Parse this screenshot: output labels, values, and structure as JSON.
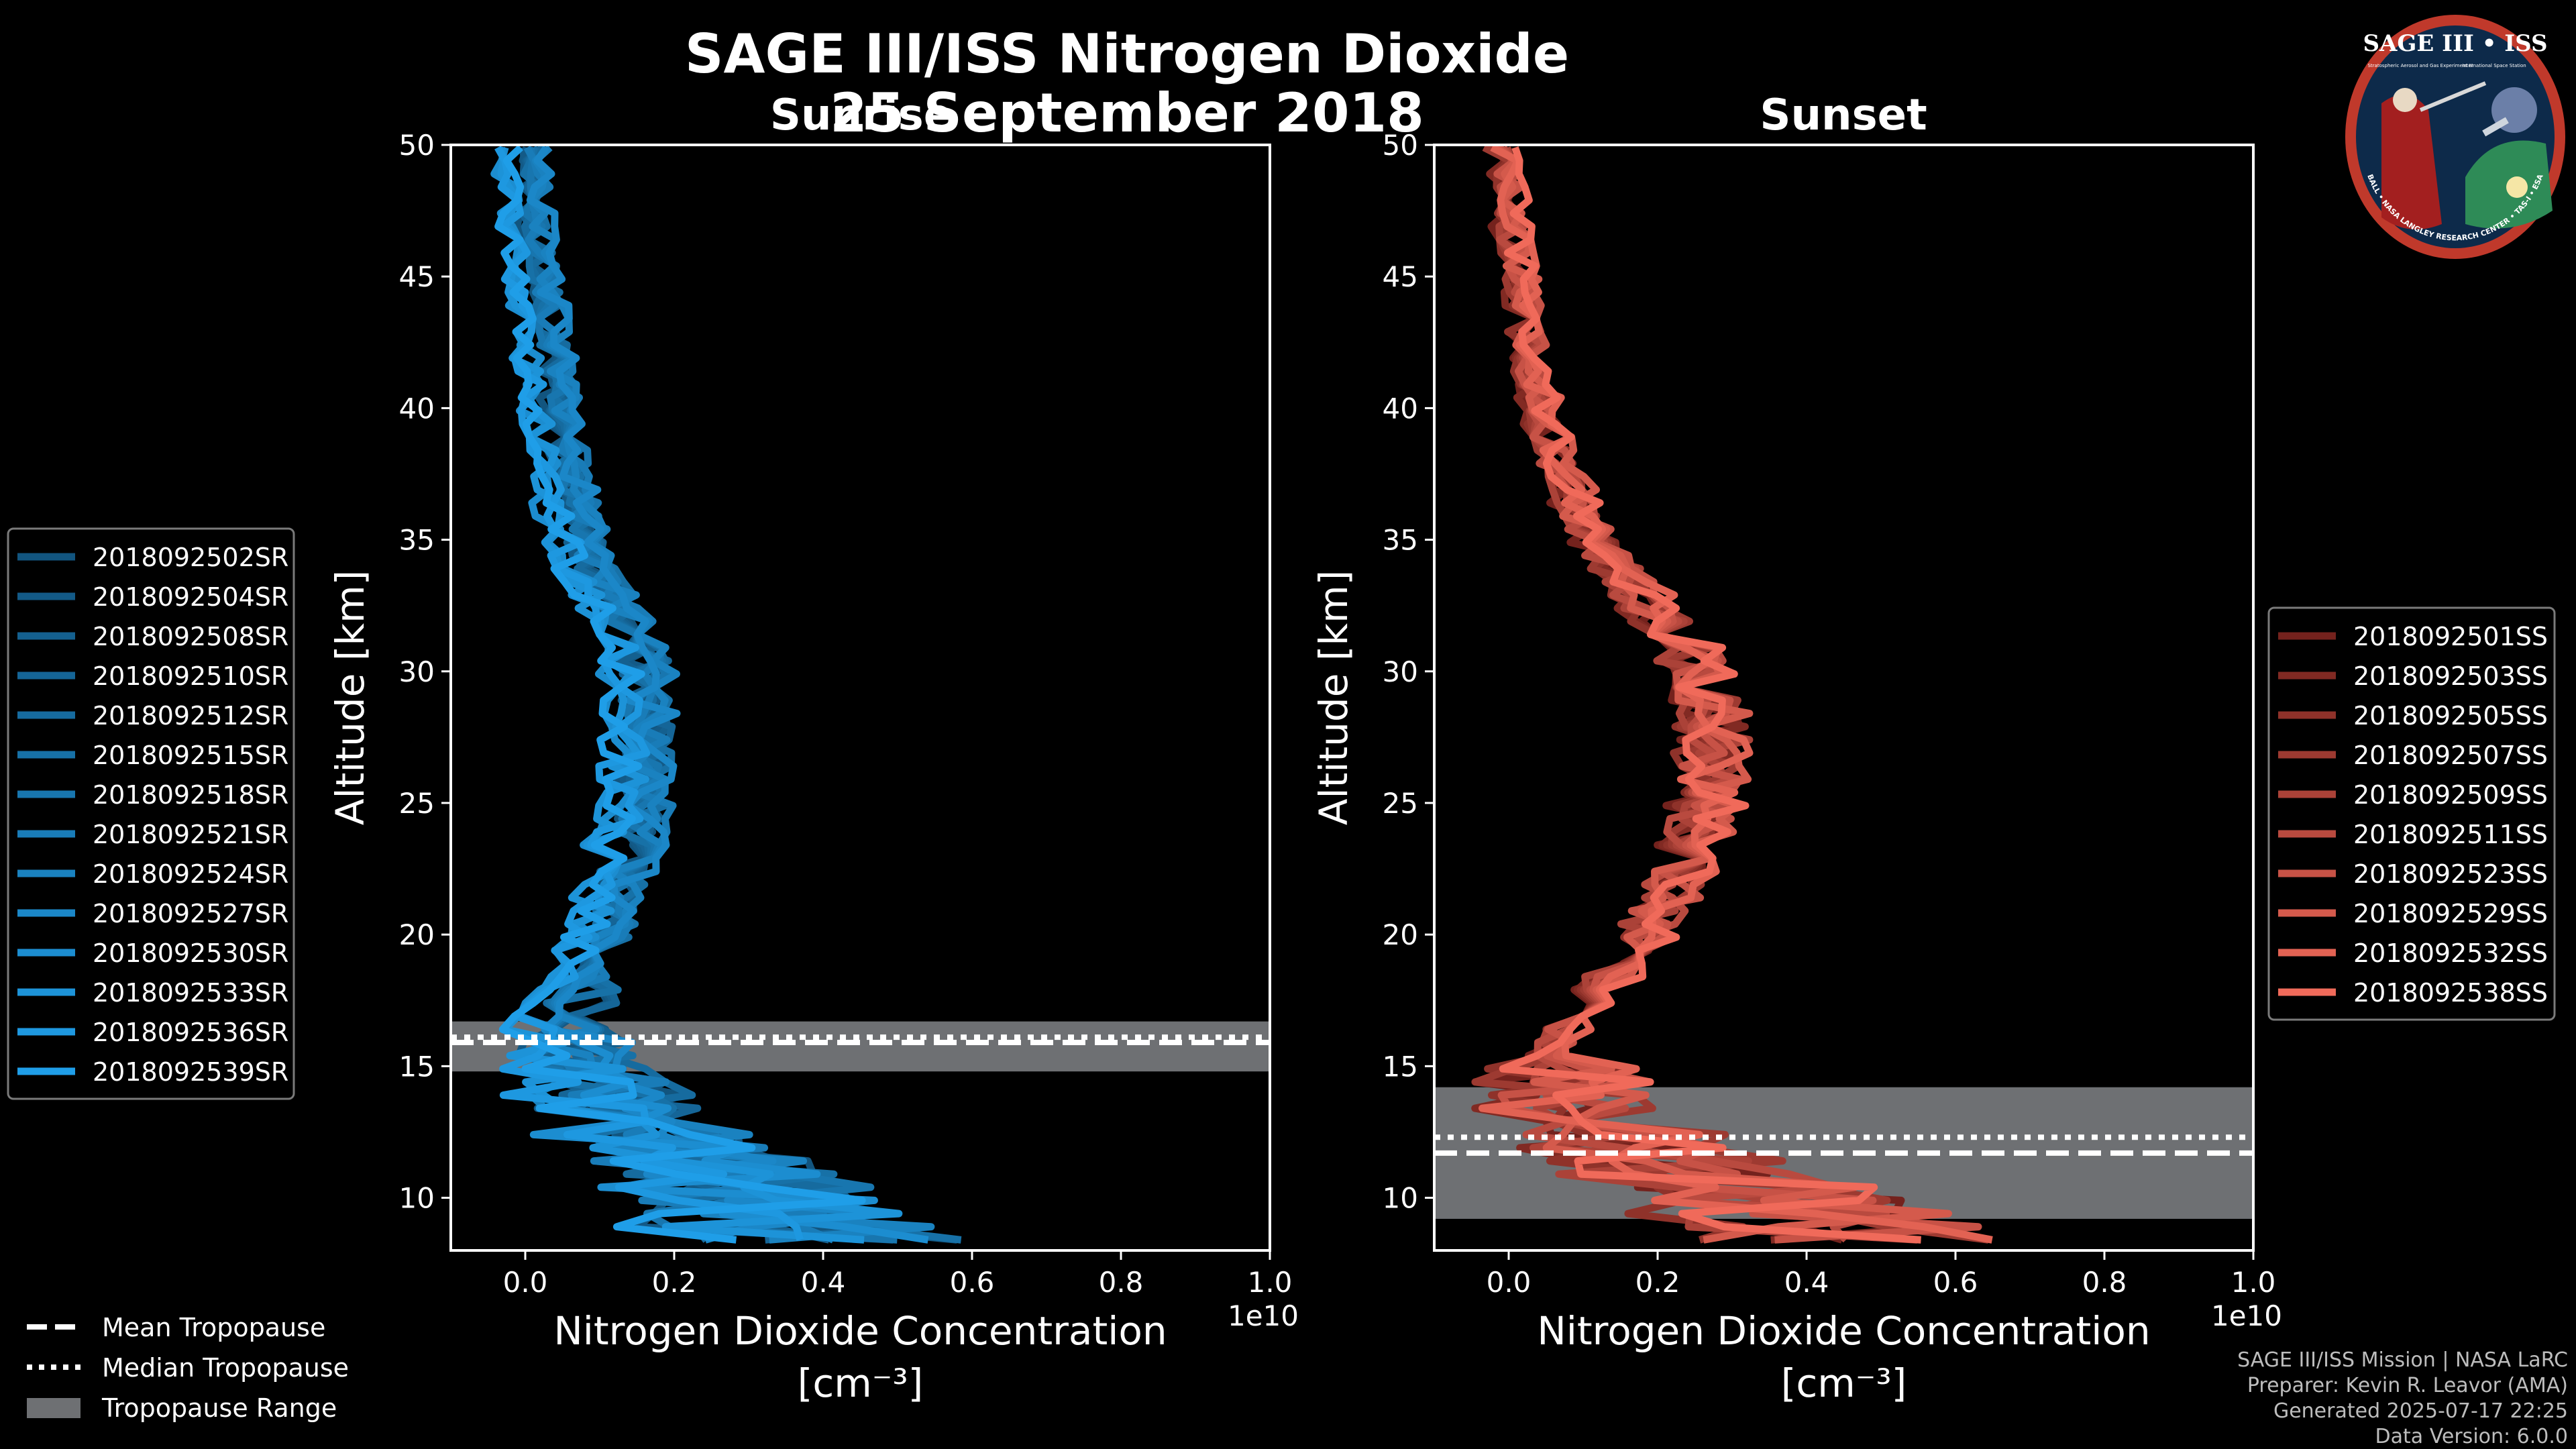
{
  "figure": {
    "title": "SAGE III/ISS Nitrogen Dioxide",
    "date": "25 September 2018",
    "credits": [
      "SAGE III/ISS Mission | NASA LaRC",
      "Preparer: Kevin R. Leavor (AMA)",
      "Generated 2025-07-17 22:25",
      "Data Version: 6.0.0"
    ],
    "logo": {
      "name": "SAGE III • ISS",
      "text_left": "Stratospheric Aerosol and Gas Experiment III",
      "text_right": "International Space Station",
      "ring_text": "BALL • NASA LANGLEY RESEARCH CENTER • TAS-I • ESA"
    },
    "tropopause_legend": [
      {
        "label": "Mean Tropopause",
        "style": "dashed"
      },
      {
        "label": "Median Tropopause",
        "style": "dotted"
      },
      {
        "label": "Tropopause Range",
        "style": "band"
      }
    ]
  },
  "chart_data": [
    {
      "type": "line",
      "title": "Sunrise",
      "xlabel": "Nitrogen Dioxide Concentration",
      "xunit": "[cm⁻³]",
      "ylabel": "Altitude [km]",
      "xlim": [
        -0.1,
        1.0
      ],
      "ylim": [
        8,
        50
      ],
      "x_scale_label": "1e10",
      "xticks": [
        0.0,
        0.2,
        0.4,
        0.6,
        0.8,
        1.0
      ],
      "xtick_labels": [
        "0.0",
        "0.2",
        "0.4",
        "0.6",
        "0.8",
        "1.0"
      ],
      "yticks": [
        10,
        15,
        20,
        25,
        30,
        35,
        40,
        45,
        50
      ],
      "legend_position": "left",
      "color_light": "#1f9ee8",
      "color_dark": "#0e3c5c",
      "series_names": [
        "2018092502SR",
        "2018092504SR",
        "2018092508SR",
        "2018092510SR",
        "2018092512SR",
        "2018092515SR",
        "2018092518SR",
        "2018092521SR",
        "2018092524SR",
        "2018092527SR",
        "2018092530SR",
        "2018092533SR",
        "2018092536SR",
        "2018092539SR"
      ],
      "tropopause": {
        "mean": 15.9,
        "median": 16.1,
        "range": [
          14.8,
          16.7
        ]
      },
      "mean_profile": {
        "altitude": [
          8.5,
          9,
          10,
          11,
          12,
          13,
          14,
          15,
          16,
          17,
          18,
          19,
          20,
          21,
          22,
          23,
          24,
          25,
          26,
          27,
          28,
          29,
          30,
          31,
          32,
          33,
          34,
          35,
          36,
          37,
          38,
          39,
          40,
          41,
          42,
          43,
          44,
          45,
          46,
          47,
          48,
          49,
          50
        ],
        "no2": [
          0.3,
          0.28,
          0.25,
          0.2,
          0.15,
          0.1,
          0.06,
          0.03,
          0.03,
          0.04,
          0.06,
          0.08,
          0.1,
          0.11,
          0.12,
          0.13,
          0.14,
          0.15,
          0.15,
          0.15,
          0.15,
          0.15,
          0.15,
          0.14,
          0.12,
          0.1,
          0.08,
          0.07,
          0.06,
          0.05,
          0.045,
          0.04,
          0.035,
          0.03,
          0.025,
          0.02,
          0.015,
          0.01,
          0.005,
          0.0,
          0.0,
          0.0,
          0.0
        ]
      }
    },
    {
      "type": "line",
      "title": "Sunset",
      "xlabel": "Nitrogen Dioxide Concentration",
      "xunit": "[cm⁻³]",
      "ylabel": "Altitude [km]",
      "xlim": [
        -0.1,
        1.0
      ],
      "ylim": [
        8,
        50
      ],
      "x_scale_label": "1e10",
      "xticks": [
        0.0,
        0.2,
        0.4,
        0.6,
        0.8,
        1.0
      ],
      "xtick_labels": [
        "0.0",
        "0.2",
        "0.4",
        "0.6",
        "0.8",
        "1.0"
      ],
      "yticks": [
        10,
        15,
        20,
        25,
        30,
        35,
        40,
        45,
        50
      ],
      "legend_position": "right",
      "color_light": "#f06a5a",
      "color_dark": "#4a0a08",
      "series_names": [
        "2018092501SS",
        "2018092503SS",
        "2018092505SS",
        "2018092507SS",
        "2018092509SS",
        "2018092511SS",
        "2018092523SS",
        "2018092529SS",
        "2018092532SS",
        "2018092538SS"
      ],
      "tropopause": {
        "mean": 11.7,
        "median": 12.3,
        "range": [
          9.2,
          14.2
        ]
      },
      "mean_profile": {
        "altitude": [
          8.5,
          9,
          10,
          11,
          12,
          13,
          14,
          15,
          16,
          17,
          18,
          19,
          20,
          21,
          22,
          23,
          24,
          25,
          26,
          27,
          28,
          29,
          30,
          31,
          32,
          33,
          34,
          35,
          36,
          37,
          38,
          39,
          40,
          41,
          42,
          43,
          44,
          45,
          46,
          47,
          48,
          49,
          50
        ],
        "no2": [
          0.4,
          0.35,
          0.28,
          0.2,
          0.13,
          0.08,
          0.05,
          0.06,
          0.08,
          0.11,
          0.14,
          0.17,
          0.2,
          0.22,
          0.24,
          0.26,
          0.27,
          0.28,
          0.29,
          0.29,
          0.29,
          0.28,
          0.27,
          0.25,
          0.22,
          0.19,
          0.16,
          0.13,
          0.11,
          0.1,
          0.08,
          0.07,
          0.06,
          0.05,
          0.045,
          0.04,
          0.035,
          0.03,
          0.025,
          0.02,
          0.015,
          0.01,
          0.0
        ]
      }
    }
  ]
}
